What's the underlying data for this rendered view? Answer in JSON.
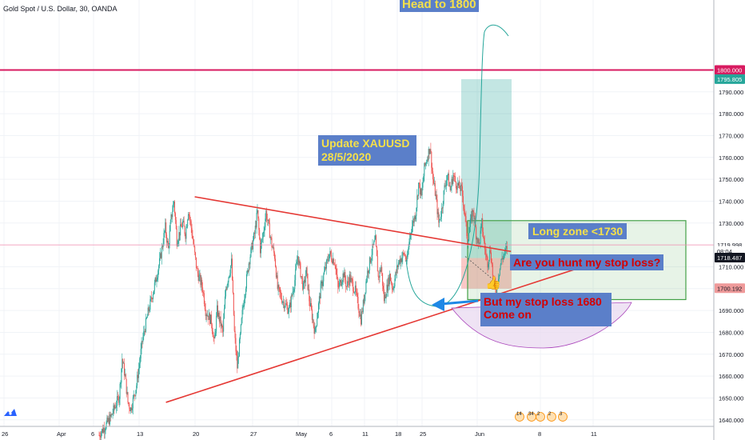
{
  "header": {
    "symbol_title": "Gold Spot / U.S. Dollar, 30, OANDA"
  },
  "colors": {
    "up": "#26a69a",
    "down": "#ef5350",
    "trendline": "#e53935",
    "target_line": "#d81b60",
    "price_line": "#f48fb1",
    "annotation_box": "#5b7fc9",
    "annotation_yellow": "#f5e04a",
    "annotation_red": "#d50000",
    "long_zone": "#43a047",
    "arrow": "#1e88e5",
    "curve_fill": "#e8d7ef",
    "curve_stroke": "#ab47bc"
  },
  "annotations": {
    "head_to": "Head to 1800",
    "update": "Update XAUUSD",
    "update_date": "28/5/2020",
    "long_zone": "Long zone <1730",
    "stop_hunt": "Are you hunt my stop loss?",
    "stop_loss_1": "But my stop loss 1680",
    "stop_loss_2": "Come on"
  },
  "price_tags": {
    "target": "1800.000",
    "high": "1795.805",
    "last": "1719.998",
    "countdown": "08:04",
    "mid": "1718.487",
    "low": "1700.192"
  },
  "events": {
    "counts": [
      "14",
      "34",
      "2",
      "2",
      "3"
    ]
  },
  "chart_data": {
    "type": "candlestick",
    "symbol": "Gold Spot / U.S. Dollar",
    "interval": "30",
    "source": "OANDA",
    "ylim": [
      1637,
      1832
    ],
    "y_ticks": [
      1640,
      1650,
      1660,
      1670,
      1680,
      1690,
      1700,
      1710,
      1720,
      1730,
      1740,
      1750,
      1760,
      1770,
      1780,
      1790
    ],
    "x_tick_labels": [
      "26",
      "Apr",
      "6",
      "13",
      "20",
      "27",
      "May",
      "6",
      "11",
      "18",
      "25",
      "Jun",
      "8",
      "11"
    ],
    "price_path": [
      [
        0,
        1633
      ],
      [
        2,
        1637
      ],
      [
        4,
        1641
      ],
      [
        7,
        1651
      ],
      [
        8,
        1668
      ],
      [
        9,
        1660
      ],
      [
        10,
        1648
      ],
      [
        11,
        1645
      ],
      [
        13,
        1656
      ],
      [
        15,
        1676
      ],
      [
        17,
        1689
      ],
      [
        19,
        1700
      ],
      [
        21,
        1712
      ],
      [
        22,
        1720
      ],
      [
        23,
        1728
      ],
      [
        24,
        1718
      ],
      [
        25,
        1732
      ],
      [
        26,
        1740
      ],
      [
        27,
        1722
      ],
      [
        29,
        1730
      ],
      [
        30,
        1725
      ],
      [
        31,
        1736
      ],
      [
        32,
        1728
      ],
      [
        33,
        1718
      ],
      [
        34,
        1708
      ],
      [
        36,
        1700
      ],
      [
        37,
        1690
      ],
      [
        39,
        1685
      ],
      [
        40,
        1675
      ],
      [
        41,
        1690
      ],
      [
        43,
        1680
      ],
      [
        44,
        1700
      ],
      [
        46,
        1712
      ],
      [
        47,
        1680
      ],
      [
        48,
        1664
      ],
      [
        50,
        1692
      ],
      [
        52,
        1712
      ],
      [
        54,
        1725
      ],
      [
        55,
        1735
      ],
      [
        56,
        1718
      ],
      [
        57,
        1725
      ],
      [
        58,
        1735
      ],
      [
        60,
        1720
      ],
      [
        61,
        1715
      ],
      [
        62,
        1700
      ],
      [
        64,
        1694
      ],
      [
        66,
        1690
      ],
      [
        68,
        1704
      ],
      [
        69,
        1715
      ],
      [
        71,
        1700
      ],
      [
        72,
        1708
      ],
      [
        73,
        1695
      ],
      [
        75,
        1680
      ],
      [
        77,
        1700
      ],
      [
        78,
        1706
      ],
      [
        80,
        1716
      ],
      [
        82,
        1712
      ],
      [
        83,
        1700
      ],
      [
        85,
        1707
      ],
      [
        86,
        1701
      ],
      [
        87,
        1705
      ],
      [
        89,
        1699
      ],
      [
        91,
        1686
      ],
      [
        92,
        1695
      ],
      [
        93,
        1706
      ],
      [
        95,
        1718
      ],
      [
        96,
        1722
      ],
      [
        97,
        1705
      ],
      [
        98,
        1710
      ],
      [
        99,
        1695
      ],
      [
        100,
        1700
      ],
      [
        101,
        1706
      ],
      [
        102,
        1700
      ],
      [
        104,
        1712
      ],
      [
        106,
        1716
      ],
      [
        107,
        1712
      ],
      [
        108,
        1725
      ],
      [
        110,
        1735
      ],
      [
        111,
        1748
      ],
      [
        112,
        1742
      ],
      [
        113,
        1755
      ],
      [
        114,
        1760
      ],
      [
        115,
        1765
      ],
      [
        116,
        1750
      ],
      [
        117,
        1742
      ],
      [
        118,
        1730
      ],
      [
        119,
        1736
      ],
      [
        120,
        1746
      ],
      [
        121,
        1752
      ],
      [
        122,
        1745
      ],
      [
        123,
        1752
      ],
      [
        124,
        1748
      ],
      [
        126,
        1745
      ],
      [
        127,
        1735
      ],
      [
        128,
        1722
      ],
      [
        129,
        1730
      ],
      [
        130,
        1736
      ],
      [
        131,
        1725
      ],
      [
        132,
        1720
      ],
      [
        133,
        1730
      ],
      [
        134,
        1718
      ],
      [
        135,
        1712
      ],
      [
        136,
        1718
      ],
      [
        137,
        1703
      ],
      [
        138,
        1700
      ],
      [
        139,
        1708
      ],
      [
        140,
        1714
      ],
      [
        141,
        1716
      ],
      [
        142,
        1720
      ]
    ],
    "lines": {
      "target_level": 1800,
      "last_price": 1720
    },
    "trendlines": [
      {
        "from": [
          36,
          1742
        ],
        "to": [
          107,
          1717
        ]
      },
      {
        "from": [
          26,
          1648
        ],
        "to": [
          141,
          1708
        ]
      }
    ],
    "zones": {
      "long_position": {
        "x": [
          125,
          140
        ],
        "entry": 1714,
        "stop": 1700,
        "target": 1795.8
      },
      "long_zone_box": {
        "x": [
          126,
          183
        ],
        "y": [
          1695,
          1730
        ]
      }
    }
  }
}
